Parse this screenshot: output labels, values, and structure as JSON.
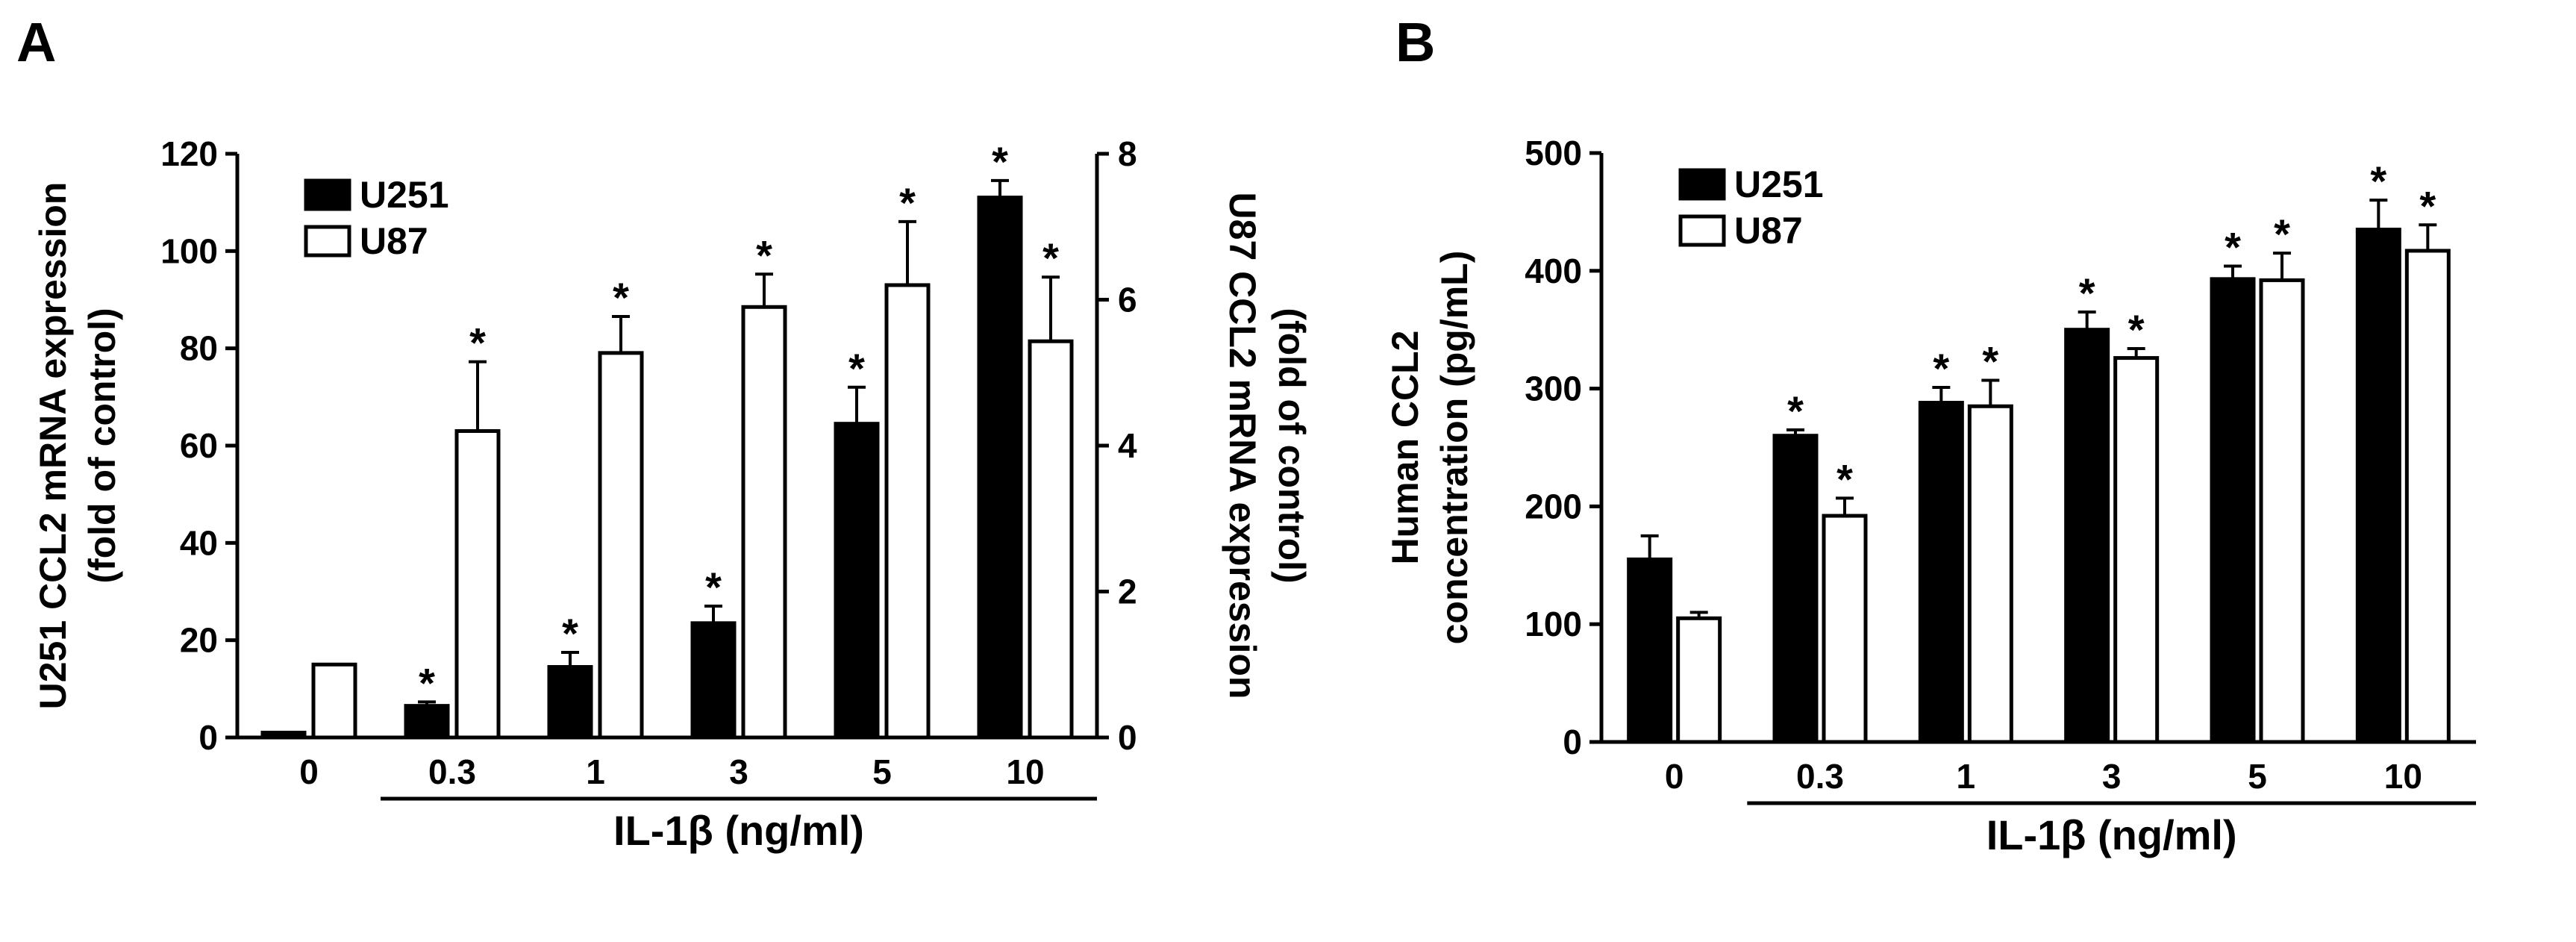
{
  "panels": {
    "A": {
      "label": "A"
    },
    "B": {
      "label": "B"
    }
  },
  "chart_data": [
    {
      "type": "bar",
      "panel": "A",
      "categories": [
        "0",
        "0.3",
        "1",
        "3",
        "5",
        "10"
      ],
      "bracket_label": "IL-1β (ng/ml)",
      "ylabel": [
        "U251 CCL2 mRNA expression",
        "(fold of control)"
      ],
      "ylabel_right": [
        "U87 CCL2 mRNA expression",
        "(fold of control)"
      ],
      "ylim": [
        0,
        120
      ],
      "yticks": [
        "0",
        "20",
        "40",
        "60",
        "80",
        "100",
        "120"
      ],
      "ylim_right": [
        0,
        8
      ],
      "yticks_right": [
        "0",
        "2",
        "4",
        "6",
        "8"
      ],
      "legend": [
        "U251",
        "U87"
      ],
      "series": [
        {
          "name": "U251",
          "axis": "left",
          "fill": "#000000",
          "values": [
            1,
            6.5,
            14.5,
            23.5,
            64.5,
            111
          ],
          "errors": [
            0,
            0.8,
            3,
            3.5,
            7.5,
            3.5
          ],
          "significant": [
            false,
            true,
            true,
            true,
            true,
            true
          ]
        },
        {
          "name": "U87",
          "axis": "right",
          "fill": "#ffffff",
          "values": [
            1,
            4.2,
            5.27,
            5.9,
            6.2,
            5.43
          ],
          "errors": [
            0,
            0.95,
            0.5,
            0.45,
            0.87,
            0.88
          ],
          "significant": [
            false,
            true,
            true,
            true,
            true,
            true
          ]
        }
      ],
      "star": "*"
    },
    {
      "type": "bar",
      "panel": "B",
      "categories": [
        "0",
        "0.3",
        "1",
        "3",
        "5",
        "10"
      ],
      "bracket_label": "IL-1β (ng/ml)",
      "ylabel": [
        "Human CCL2",
        "concentration (pg/mL)"
      ],
      "ylim": [
        0,
        500
      ],
      "yticks": [
        "0",
        "100",
        "200",
        "300",
        "400",
        "500"
      ],
      "legend": [
        "U251",
        "U87"
      ],
      "series": [
        {
          "name": "U251",
          "axis": "left",
          "fill": "#000000",
          "values": [
            155,
            260,
            288,
            350,
            393,
            435
          ],
          "errors": [
            20,
            5,
            13,
            15,
            11,
            25
          ],
          "significant": [
            false,
            true,
            true,
            true,
            true,
            true
          ]
        },
        {
          "name": "U87",
          "axis": "left",
          "fill": "#ffffff",
          "values": [
            105,
            192,
            285,
            326,
            392,
            417
          ],
          "errors": [
            5,
            15,
            22,
            8,
            23,
            22
          ],
          "significant": [
            false,
            true,
            true,
            true,
            true,
            true
          ]
        }
      ],
      "star": "*"
    }
  ]
}
